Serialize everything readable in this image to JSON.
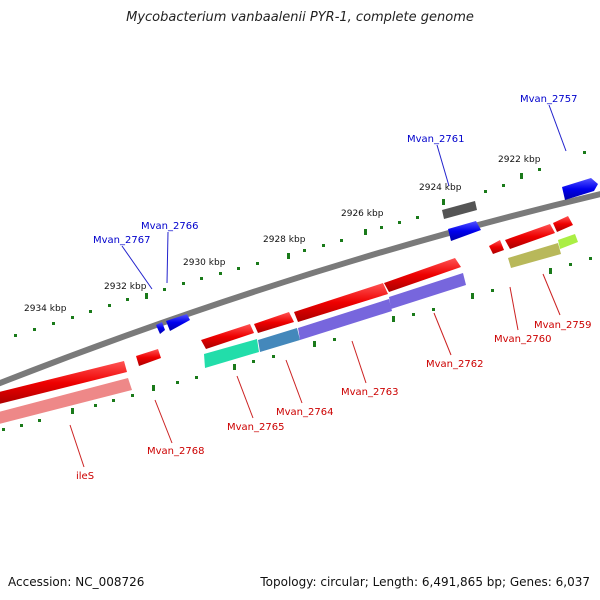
{
  "title": "Mycobacterium vanbaalenii PYR-1, complete genome",
  "footer": {
    "accession": "Accession: NC_008726",
    "summary": "Topology: circular; Length: 6,491,865 bp; Genes: 6,037"
  },
  "scale_labels": [
    "2922 kbp",
    "2924 kbp",
    "2926 kbp",
    "2928 kbp",
    "2930 kbp",
    "2932 kbp",
    "2934 kbp"
  ],
  "gene_labels": {
    "top": [
      "Mvan_2757",
      "Mvan_2761",
      "Mvan_2766",
      "Mvan_2767"
    ],
    "bottom": [
      "Mvan_2759",
      "Mvan_2760",
      "Mvan_2762",
      "Mvan_2763",
      "Mvan_2764",
      "Mvan_2765",
      "Mvan_2768",
      "ileS"
    ]
  },
  "colors": {
    "forward_gene": "#0000ee",
    "reverse_gene": "#ee0000",
    "tick": "#1a7a1a",
    "backbone": "#808080",
    "top_label": "#0000cc",
    "bottom_label": "#cc0000"
  }
}
